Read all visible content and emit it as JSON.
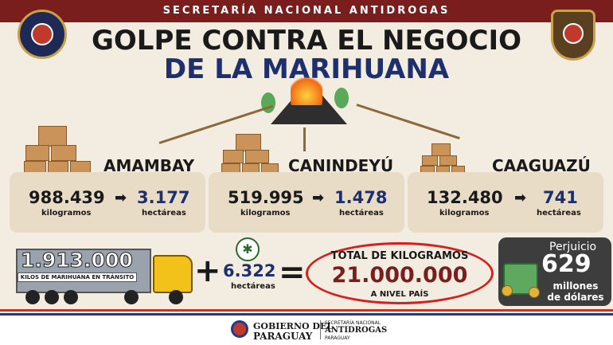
{
  "header": {
    "agency": "SECRETARÍA NACIONAL ANTIDROGAS",
    "title_line1": "GOLPE CONTRA EL NEGOCIO",
    "title_line2": "DE LA MARIHUANA"
  },
  "regions": [
    {
      "name": "AMAMBAY",
      "kilos": "988.439",
      "kilos_unit": "kilogramos",
      "hectares": "3.177",
      "hectares_unit": "hectáreas"
    },
    {
      "name": "CANINDEYÚ",
      "kilos": "519.995",
      "kilos_unit": "kilogramos",
      "hectares": "1.478",
      "hectares_unit": "hectáreas"
    },
    {
      "name": "CAAGUAZÚ",
      "kilos": "132.480",
      "kilos_unit": "kilogramos",
      "hectares": "741",
      "hectares_unit": "hectáreas"
    }
  ],
  "transit": {
    "value": "1.913.000",
    "label": "KILOS DE MARIHUANA EN TRÁNSITO"
  },
  "hectares_total": {
    "value": "6.322",
    "unit": "hectáreas"
  },
  "total": {
    "title": "TOTAL DE KILOGRAMOS",
    "value": "21.000.000",
    "subtitle": "A NIVEL PAÍS"
  },
  "loss": {
    "label": "Perjuicio",
    "value": "629",
    "unit_line1": "millones",
    "unit_line2": "de dólares"
  },
  "footer": {
    "gov_line1": "GOBIERNO DEL",
    "gov_line2": "PARAGUAY",
    "agency_line1": "SECRETARÍA NACIONAL",
    "agency_line2": "ANTIDROGAS",
    "agency_line3": "PARAGUAY"
  },
  "icons": {
    "arrow": "➡",
    "plus": "+",
    "equals": "=",
    "leaf": "✱"
  },
  "colors": {
    "header_bg": "#7a1d1d",
    "title_blue": "#1e2f6e",
    "total_red": "#d42020",
    "card_bg": "#e9dcc6"
  }
}
